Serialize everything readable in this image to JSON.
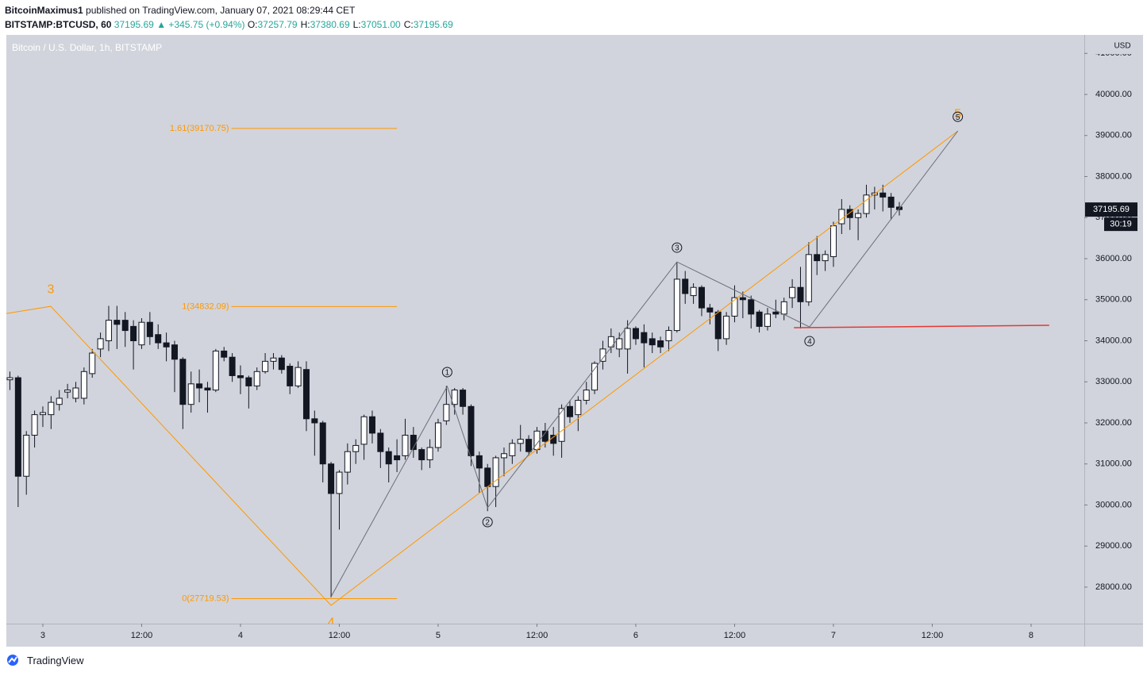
{
  "header": {
    "author": "BitcoinMaximus1",
    "published": "published on TradingView.com, January 07, 2021 08:29:44 CET",
    "symbol": "BITSTAMP:BTCUSD, 60",
    "last": "37195.69",
    "change": "▲ +345.75 (+0.94%)",
    "ohlc": [
      {
        "key": "O:",
        "value": "37257.79"
      },
      {
        "key": "H:",
        "value": "37380.69"
      },
      {
        "key": "L:",
        "value": "37051.00"
      },
      {
        "key": "C:",
        "value": "37195.69"
      }
    ]
  },
  "chart_data": {
    "type": "candlestick",
    "title": "Bitcoin / U.S. Dollar, 1h, BITSTAMP",
    "y_unit": "USD",
    "up_color": "#ffffff",
    "down_color": "#131722",
    "background": "#d1d4dc",
    "x": [
      -4,
      -3,
      -2,
      -1,
      0,
      1,
      2,
      3,
      4,
      5,
      6,
      7,
      8,
      9,
      10,
      11,
      12,
      13,
      14,
      15,
      16,
      17,
      18,
      19,
      20,
      21,
      22,
      23,
      24,
      25,
      26,
      27,
      28,
      29,
      30,
      31,
      32,
      33,
      34,
      35,
      36,
      37,
      38,
      39,
      40,
      41,
      42,
      43,
      44,
      45,
      46,
      47,
      48,
      49,
      50,
      51,
      52,
      53,
      54,
      55,
      56,
      57,
      58,
      59,
      60,
      61,
      62,
      63,
      64,
      65,
      66,
      67,
      68,
      69,
      70,
      71,
      72,
      73,
      74,
      75,
      76,
      77,
      78,
      79,
      80,
      81,
      82,
      83,
      84,
      85,
      86,
      87,
      88,
      89,
      90,
      91,
      92,
      93,
      94,
      95,
      96,
      97,
      98,
      99,
      100,
      101,
      102,
      103,
      104
    ],
    "open": [
      33050,
      33100,
      30700,
      31700,
      32200,
      32200,
      32450,
      32750,
      32600,
      32600,
      33200,
      33800,
      34000,
      34500,
      34500,
      34350,
      33900,
      34450,
      34150,
      33950,
      33900,
      33550,
      32450,
      32950,
      32850,
      32800,
      33750,
      33600,
      33150,
      33100,
      32900,
      33250,
      33500,
      33580,
      33380,
      32900,
      33300,
      32100,
      32000,
      31000,
      30280,
      30800,
      31300,
      31480,
      32150,
      31750,
      31300,
      31200,
      31200,
      31700,
      31350,
      31100,
      31400,
      32050,
      32450,
      32800,
      32400,
      31200,
      30900,
      30450,
      31150,
      31200,
      31500,
      31600,
      31350,
      31800,
      31700,
      31550,
      32400,
      32200,
      32550,
      32800,
      33500,
      33850,
      33800,
      33800,
      34300,
      34200,
      34050,
      34000,
      34000,
      34250,
      35500,
      35100,
      35300,
      34800,
      34700,
      34050,
      34600,
      35050,
      35000,
      34700,
      34350,
      34700,
      34650,
      35050,
      35300,
      34950,
      36100,
      35950,
      36050,
      36850,
      37200,
      37000,
      37100,
      37550,
      37600,
      37500,
      37257.79
    ],
    "high": [
      33250,
      33150,
      31800,
      32300,
      32400,
      32650,
      32800,
      32950,
      33000,
      33350,
      33800,
      34200,
      34850,
      34850,
      34700,
      34500,
      34550,
      34700,
      34400,
      34200,
      34000,
      33600,
      33250,
      33300,
      33000,
      33800,
      33850,
      33700,
      33400,
      33150,
      33350,
      33700,
      33700,
      33650,
      33450,
      33500,
      33500,
      32300,
      32050,
      31050,
      30850,
      31500,
      31600,
      32200,
      32300,
      31850,
      31400,
      31600,
      32100,
      31900,
      31400,
      31600,
      32100,
      32900,
      32850,
      32850,
      32450,
      31300,
      31000,
      31200,
      31400,
      31600,
      31950,
      31700,
      31900,
      32000,
      31900,
      32450,
      32550,
      32650,
      33000,
      33500,
      34000,
      34300,
      34200,
      34500,
      34350,
      34400,
      34200,
      34100,
      34350,
      35900,
      35700,
      35400,
      35350,
      34900,
      34750,
      34700,
      35350,
      35200,
      35100,
      34750,
      34800,
      35000,
      35050,
      35500,
      35800,
      36400,
      36550,
      36200,
      36900,
      37450,
      37300,
      37200,
      37800,
      37750,
      37800,
      37600,
      37380.69
    ],
    "low": [
      32800,
      29950,
      30250,
      31400,
      31900,
      31850,
      32300,
      32600,
      32500,
      32450,
      33100,
      33600,
      33750,
      33800,
      33850,
      33300,
      33800,
      33900,
      33800,
      33500,
      32750,
      31850,
      32250,
      32500,
      32250,
      32750,
      33500,
      33000,
      32700,
      32350,
      32800,
      33200,
      33300,
      33200,
      32700,
      32850,
      31800,
      31200,
      30550,
      27750,
      29400,
      30500,
      31000,
      31100,
      31500,
      30900,
      30550,
      30800,
      31100,
      31150,
      30850,
      30900,
      31300,
      31950,
      32200,
      32200,
      30950,
      30300,
      29850,
      29950,
      30700,
      31000,
      31300,
      31200,
      31250,
      31400,
      31200,
      31150,
      32000,
      31800,
      32450,
      32700,
      33300,
      33700,
      33600,
      33200,
      33900,
      33350,
      33700,
      33700,
      33750,
      34200,
      34900,
      34900,
      34600,
      34400,
      33750,
      33900,
      34450,
      34550,
      34300,
      34200,
      34250,
      34550,
      34500,
      34800,
      34300,
      34850,
      35600,
      35700,
      35800,
      36600,
      36700,
      36450,
      37000,
      37200,
      37150,
      36950,
      37051
    ],
    "close": [
      33100,
      30700,
      31700,
      32200,
      32250,
      32500,
      32600,
      32800,
      32850,
      33250,
      33700,
      34050,
      34500,
      34400,
      34250,
      34000,
      34450,
      34100,
      33950,
      33850,
      33550,
      32450,
      32950,
      32850,
      32800,
      33750,
      33600,
      33150,
      33100,
      32900,
      33250,
      33500,
      33580,
      33300,
      32900,
      33350,
      32100,
      32000,
      31000,
      30280,
      30800,
      31300,
      31450,
      32150,
      31750,
      31300,
      31000,
      31100,
      31700,
      31350,
      31100,
      31400,
      32000,
      32450,
      32800,
      32400,
      31200,
      30900,
      30450,
      31150,
      31250,
      31500,
      31600,
      31300,
      31800,
      31550,
      31500,
      32350,
      32150,
      32550,
      32800,
      33450,
      33800,
      34100,
      34050,
      34300,
      34050,
      33950,
      33900,
      33850,
      34250,
      35500,
      35150,
      35300,
      34800,
      34700,
      34050,
      34600,
      35050,
      35000,
      34650,
      34350,
      34650,
      34650,
      34950,
      35300,
      34950,
      36100,
      35950,
      36100,
      36800,
      37200,
      37000,
      37100,
      37550,
      37600,
      37500,
      37250,
      37195.69
    ],
    "xlim": [
      -4.43,
      126.46
    ],
    "ylim": [
      27110,
      41450
    ],
    "xticks": [
      {
        "value": 0,
        "label": "3"
      },
      {
        "value": 12,
        "label": "12:00"
      },
      {
        "value": 24,
        "label": "4"
      },
      {
        "value": 36,
        "label": "12:00"
      },
      {
        "value": 48,
        "label": "5"
      },
      {
        "value": 60,
        "label": "12:00"
      },
      {
        "value": 72,
        "label": "6"
      },
      {
        "value": 84,
        "label": "12:00"
      },
      {
        "value": 96,
        "label": "7"
      },
      {
        "value": 108,
        "label": "12:00"
      },
      {
        "value": 120,
        "label": "8"
      }
    ],
    "yticks": [
      {
        "value": 28000,
        "label": "28000.00"
      },
      {
        "value": 29000,
        "label": "29000.00"
      },
      {
        "value": 30000,
        "label": "30000.00"
      },
      {
        "value": 31000,
        "label": "31000.00"
      },
      {
        "value": 32000,
        "label": "32000.00"
      },
      {
        "value": 33000,
        "label": "33000.00"
      },
      {
        "value": 34000,
        "label": "34000.00"
      },
      {
        "value": 35000,
        "label": "35000.00"
      },
      {
        "value": 36000,
        "label": "36000.00"
      },
      {
        "value": 37000,
        "label": "37000.00"
      },
      {
        "value": 38000,
        "label": "38000.00"
      },
      {
        "value": 39000,
        "label": "39000.00"
      },
      {
        "value": 40000,
        "label": "40000.00"
      },
      {
        "value": 41000,
        "label": "41000.00"
      }
    ],
    "fib_levels": {
      "color": "#ff9800",
      "x": [
        22.9,
        43
      ],
      "levels": [
        {
          "value": 39170.75,
          "label": "1.61(39170.75)"
        },
        {
          "value": 34832.09,
          "label": "1(34832.09)"
        },
        {
          "value": 27719.53,
          "label": "0(27719.53)"
        }
      ]
    },
    "waves": [
      {
        "color": "#ff9800",
        "circled": false,
        "x": [
          -4.43,
          0.96,
          35,
          111.1
        ],
        "y": [
          34665,
          34839,
          27556,
          39109
        ],
        "labels": [
          null,
          "3",
          "4",
          "5"
        ]
      },
      {
        "color": "#6b6e78",
        "circled": true,
        "x": [
          35,
          49.1,
          54,
          77,
          93.1,
          111.1
        ],
        "y": [
          27768,
          32888,
          29932,
          35921,
          34337,
          39109
        ],
        "labels": [
          null,
          "1",
          "2",
          "3",
          "4",
          "5"
        ]
      }
    ],
    "support": {
      "color": "#e53935",
      "x": [
        91.2,
        122.2
      ],
      "y": [
        34318,
        34376
      ]
    },
    "price_tag": {
      "value": 37195.69,
      "label": "37195.69"
    },
    "countdown": "30:19"
  },
  "footer": {
    "brand": "TradingView"
  }
}
